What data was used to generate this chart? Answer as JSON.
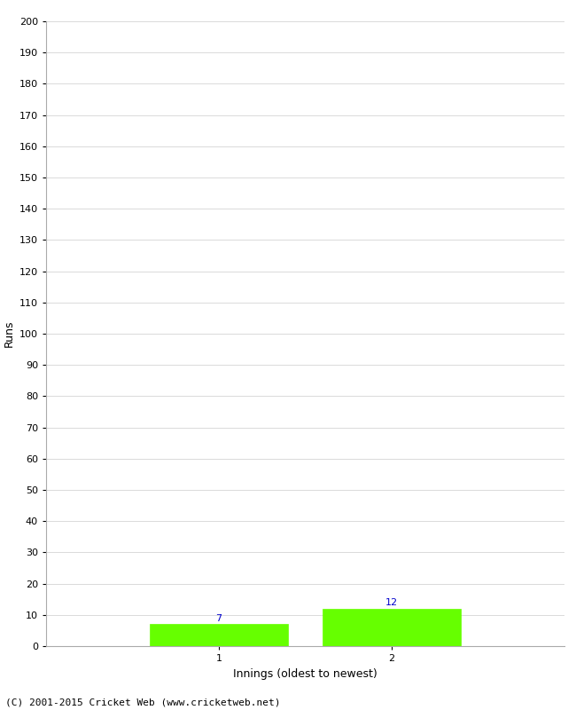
{
  "title": "",
  "xlabel": "Innings (oldest to newest)",
  "ylabel": "Runs",
  "categories": [
    1,
    2
  ],
  "values": [
    7,
    12
  ],
  "bar_color": "#66ff00",
  "bar_edge_color": "#66ff00",
  "ylim": [
    0,
    200
  ],
  "ytick_step": 10,
  "value_label_color": "#0000cc",
  "background_color": "#ffffff",
  "grid_color": "#cccccc",
  "footer_text": "(C) 2001-2015 Cricket Web (www.cricketweb.net)",
  "xlim": [
    0,
    3
  ],
  "bar_width": 0.8,
  "tick_fontsize": 8,
  "label_fontsize": 9,
  "footer_fontsize": 8
}
